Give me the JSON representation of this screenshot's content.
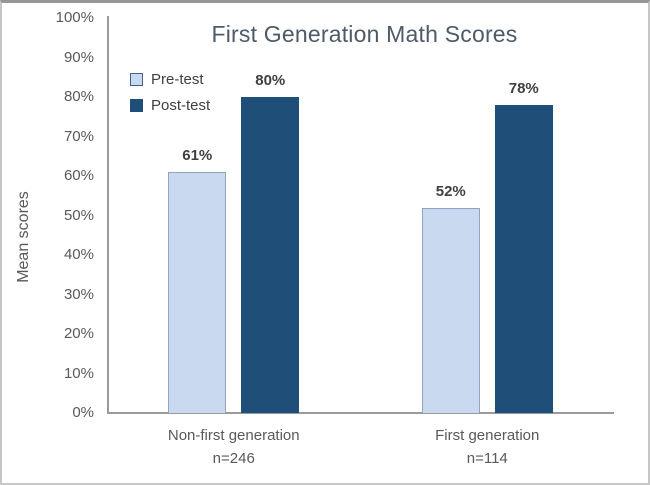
{
  "chart_data": {
    "type": "bar",
    "title": "First Generation Math Scores",
    "ylabel": "Mean scores",
    "xlabel": "",
    "ylim": [
      0,
      100
    ],
    "y_tick_labels": [
      "0%",
      "10%",
      "20%",
      "30%",
      "40%",
      "50%",
      "60%",
      "70%",
      "80%",
      "90%",
      "100%"
    ],
    "grid": false,
    "legend_position": "upper-left-inside",
    "categories": [
      {
        "label": "Non-first generation",
        "sublabel": "n=246"
      },
      {
        "label": "First generation",
        "sublabel": "n=114"
      }
    ],
    "series": [
      {
        "name": "Pre-test",
        "values": [
          61,
          52
        ],
        "data_labels": [
          "61%",
          "52%"
        ],
        "color": "#c9d9f0",
        "border_color": "#8fa5c3"
      },
      {
        "name": "Post-test",
        "values": [
          80,
          78
        ],
        "data_labels": [
          "80%",
          "78%"
        ],
        "color": "#1f4e79",
        "border_color": "#1f4e79"
      }
    ],
    "colors": {
      "title_text": "#4f5a68",
      "axis_line": "#9a9a9a",
      "tick_text": "#595959",
      "category_text": "#595959",
      "data_label_text": "#404040",
      "legend_text": "#404040",
      "background": "#ffffff"
    }
  }
}
